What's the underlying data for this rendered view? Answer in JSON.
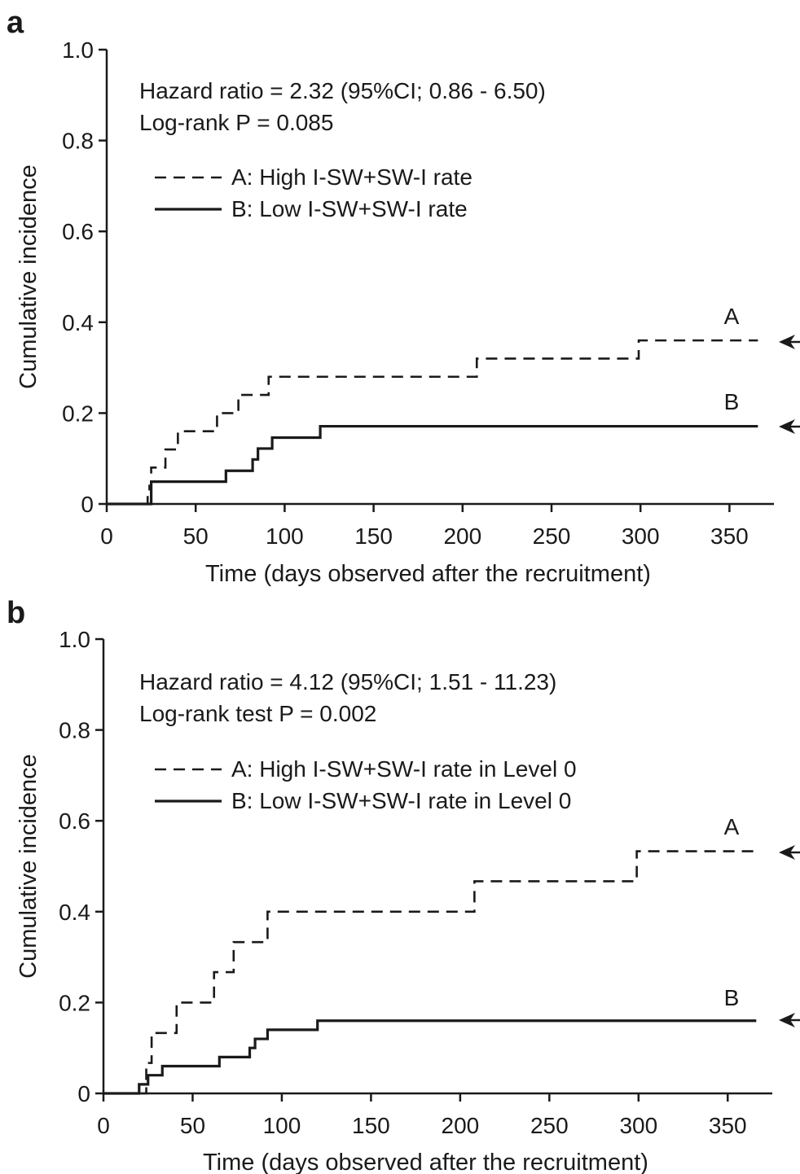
{
  "chart_data": [
    {
      "type": "line",
      "step": true,
      "panel_label": "a",
      "xlabel": "Time (days observed after the recruitment)",
      "ylabel": "Cumulative incidence",
      "xlim": [
        0,
        375
      ],
      "ylim": [
        0,
        1.0
      ],
      "x_ticks": [
        "0",
        "50",
        "100",
        "150",
        "200",
        "250",
        "300",
        "350"
      ],
      "y_ticks": [
        "0",
        "0.2",
        "0.4",
        "0.6",
        "0.8",
        "1.0"
      ],
      "annotations": [
        "Hazard ratio = 2.32 (95%CI; 0.86 - 6.50)",
        "Log-rank P = 0.085"
      ],
      "legend_position": "top-left",
      "series": [
        {
          "name": "A: High I-SW+SW-I rate",
          "label": "A",
          "style": "dashed",
          "x": [
            0,
            23,
            24,
            25,
            33,
            40,
            62,
            74,
            91,
            208,
            299,
            366
          ],
          "y": [
            0,
            0.02,
            0.04,
            0.08,
            0.12,
            0.16,
            0.2,
            0.24,
            0.28,
            0.32,
            0.36,
            0.36
          ]
        },
        {
          "name": "B: Low I-SW+SW-I rate",
          "label": "B",
          "style": "solid",
          "x": [
            0,
            25,
            67,
            82,
            85,
            93,
            120,
            366
          ],
          "y": [
            0,
            0.049,
            0.073,
            0.098,
            0.122,
            0.146,
            0.171,
            0.171
          ]
        }
      ]
    },
    {
      "type": "line",
      "step": true,
      "panel_label": "b",
      "xlabel": "Time (days observed after the recruitment)",
      "ylabel": "Cumulative incidence",
      "xlim": [
        0,
        375
      ],
      "ylim": [
        0,
        1.0
      ],
      "x_ticks": [
        "0",
        "50",
        "100",
        "150",
        "200",
        "250",
        "300",
        "350"
      ],
      "y_ticks": [
        "0",
        "0.2",
        "0.4",
        "0.6",
        "0.8",
        "1.0"
      ],
      "annotations": [
        "Hazard ratio = 4.12 (95%CI; 1.51 - 11.23)",
        "Log-rank test P = 0.002"
      ],
      "legend_position": "top-left",
      "series": [
        {
          "name": "A: High I-SW+SW-I rate in Level 0",
          "label": "A",
          "style": "dashed",
          "x": [
            0,
            24,
            27,
            41,
            62,
            73,
            92,
            208,
            299,
            366
          ],
          "y": [
            0,
            0.067,
            0.133,
            0.2,
            0.267,
            0.333,
            0.4,
            0.467,
            0.533,
            0.533
          ],
          "x_start": 20
        },
        {
          "name": "B: Low  I-SW+SW-I rate in Level 0",
          "label": "B",
          "style": "solid",
          "x": [
            0,
            20,
            25,
            33,
            65,
            82,
            85,
            92,
            120,
            366
          ],
          "y": [
            0,
            0.02,
            0.04,
            0.06,
            0.08,
            0.1,
            0.12,
            0.14,
            0.16,
            0.16
          ]
        }
      ]
    }
  ]
}
